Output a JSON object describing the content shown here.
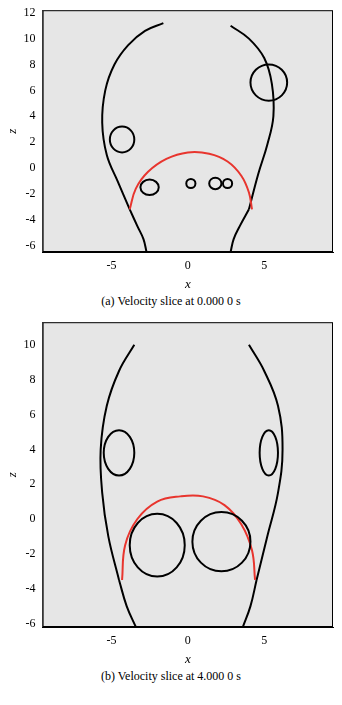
{
  "chart_data": [
    {
      "type": "scatter",
      "title": "(a) Velocity slice at 0.000 0 s",
      "x_label": "x",
      "y_label": "z",
      "xlim": [
        -9.5,
        9.5
      ],
      "ylim": [
        -6.5,
        12.2
      ],
      "xticks": [
        -5,
        0,
        5
      ],
      "yticks": [
        -6,
        -4,
        -2,
        0,
        2,
        4,
        6,
        8,
        10,
        12
      ],
      "grid": false,
      "series": [
        {
          "color": "#e8352e",
          "line_style": "solid",
          "x": [
            -3.8,
            -3.4,
            -2.6,
            -1.4,
            0,
            1.4,
            2.6,
            3.5,
            4.0,
            4.2
          ],
          "values": [
            -3.2,
            -1.6,
            -0.3,
            0.7,
            1.2,
            1.1,
            0.5,
            -0.6,
            -1.9,
            -3.2
          ]
        },
        {
          "color": "#000000",
          "line_style": "solid",
          "x": [
            -3.8,
            -4.6,
            -5.3,
            -5.6,
            -5.4,
            -4.8,
            -3.9,
            -2.8,
            -1.6
          ],
          "values": [
            -3.2,
            -1,
            1,
            3.5,
            6,
            8,
            9.5,
            10.6,
            11.2
          ]
        },
        {
          "color": "#000000",
          "line_style": "solid",
          "x": [
            4.0,
            4.6,
            5.2,
            5.6,
            5.5,
            5.0,
            4.0,
            2.8
          ],
          "values": [
            -3.2,
            -0.5,
            1.8,
            4,
            6.5,
            8.5,
            10,
            11
          ]
        },
        {
          "color": "#000000",
          "line_style": "solid",
          "x": [
            -3.8,
            -3.3,
            -2.9,
            -2.7
          ],
          "values": [
            -3.2,
            -4.5,
            -5.5,
            -6.5
          ]
        },
        {
          "color": "#000000",
          "line_style": "solid",
          "x": [
            4.0,
            3.4,
            3.0,
            2.8
          ],
          "values": [
            -3.2,
            -4.5,
            -5.5,
            -6.5
          ]
        }
      ],
      "vortices": [
        {
          "x": -4.3,
          "z": 2.2,
          "rx": 0.8,
          "rz": 1.0
        },
        {
          "x": 5.3,
          "z": 6.6,
          "rx": 1.2,
          "rz": 1.4
        },
        {
          "x": -2.5,
          "z": -1.5,
          "rx": 0.6,
          "rz": 0.6
        },
        {
          "x": 0.2,
          "z": -1.2,
          "rx": 0.3,
          "rz": 0.35
        },
        {
          "x": 1.8,
          "z": -1.2,
          "rx": 0.4,
          "rz": 0.45
        },
        {
          "x": 2.6,
          "z": -1.2,
          "rx": 0.3,
          "rz": 0.35
        }
      ]
    },
    {
      "type": "scatter",
      "title": "(b) Velocity slice at 4.000 0 s",
      "x_label": "x",
      "y_label": "z",
      "xlim": [
        -9.5,
        9.5
      ],
      "ylim": [
        -6.2,
        11.3
      ],
      "xticks": [
        -5,
        0,
        5
      ],
      "yticks": [
        -6,
        -4,
        -2,
        0,
        2,
        4,
        6,
        8,
        10
      ],
      "grid": false,
      "series": [
        {
          "color": "#e8352e",
          "line_style": "solid",
          "x": [
            -4.3,
            -4.1,
            -3.3,
            -2,
            -0.5,
            1,
            2.4,
            3.5,
            4.2,
            4.4
          ],
          "values": [
            -3.5,
            -1.5,
            0,
            1,
            1.3,
            1.3,
            0.8,
            -0.3,
            -1.8,
            -3.5
          ]
        },
        {
          "color": "#000000",
          "line_style": "solid",
          "x": [
            -4.5,
            -5.2,
            -5.6,
            -5.7,
            -5.3,
            -4.5,
            -3.5
          ],
          "values": [
            -3.5,
            -1,
            1.5,
            4,
            6.5,
            8.5,
            10
          ]
        },
        {
          "color": "#000000",
          "line_style": "solid",
          "x": [
            4.5,
            5.2,
            5.9,
            6.2,
            5.9,
            5.0,
            4.0
          ],
          "values": [
            -3.5,
            -1,
            1.5,
            4,
            6.5,
            8.5,
            10
          ]
        },
        {
          "color": "#000000",
          "line_style": "solid",
          "x": [
            -4.5,
            -4.0,
            -3.4
          ],
          "values": [
            -3.5,
            -5,
            -6.2
          ]
        },
        {
          "color": "#000000",
          "line_style": "solid",
          "x": [
            4.5,
            4.1,
            3.6
          ],
          "values": [
            -3.5,
            -5,
            -6.2
          ]
        }
      ],
      "vortices": [
        {
          "x": -4.5,
          "z": 3.8,
          "rx": 1.0,
          "rz": 1.3
        },
        {
          "x": 5.3,
          "z": 3.8,
          "rx": 0.6,
          "rz": 1.3
        },
        {
          "x": -2.0,
          "z": -1.5,
          "rx": 1.8,
          "rz": 1.8
        },
        {
          "x": 2.2,
          "z": -1.3,
          "rx": 1.9,
          "rz": 1.7
        }
      ]
    }
  ]
}
